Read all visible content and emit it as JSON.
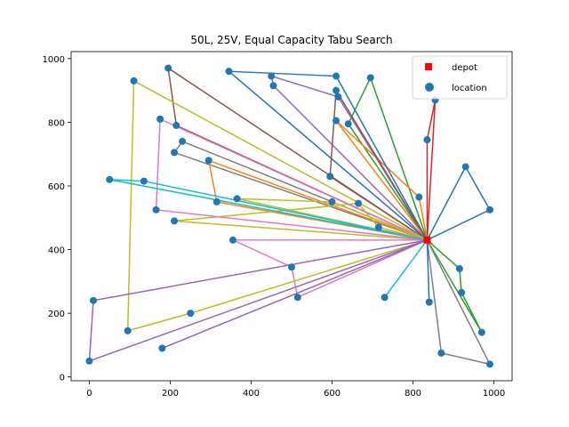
{
  "chart_data": {
    "type": "scatter",
    "title": "50L, 25V, Equal Capacity Tabu Search",
    "xlabel": "",
    "ylabel": "",
    "xlim": [
      -45,
      1045
    ],
    "ylim": [
      -12,
      1022
    ],
    "xticks": [
      0,
      200,
      400,
      600,
      800,
      1000
    ],
    "yticks": [
      0,
      200,
      400,
      600,
      800,
      1000
    ],
    "grid": false,
    "legend": {
      "placement": "top-right",
      "entries": [
        {
          "label": "depot",
          "marker": "square",
          "color": "#ff0000"
        },
        {
          "label": "location",
          "marker": "circle",
          "color": "#1f77b4"
        }
      ]
    },
    "depot": {
      "x": 835,
      "y": 430
    },
    "locations": [
      [
        855,
        870
      ],
      [
        835,
        745
      ],
      [
        815,
        565
      ],
      [
        930,
        660
      ],
      [
        990,
        525
      ],
      [
        915,
        340
      ],
      [
        920,
        265
      ],
      [
        970,
        140
      ],
      [
        990,
        40
      ],
      [
        870,
        75
      ],
      [
        840,
        235
      ],
      [
        730,
        250
      ],
      [
        715,
        470
      ],
      [
        695,
        940
      ],
      [
        640,
        795
      ],
      [
        665,
        545
      ],
      [
        610,
        805
      ],
      [
        615,
        880
      ],
      [
        610,
        945
      ],
      [
        610,
        900
      ],
      [
        595,
        630
      ],
      [
        600,
        550
      ],
      [
        450,
        945
      ],
      [
        455,
        915
      ],
      [
        345,
        960
      ],
      [
        195,
        970
      ],
      [
        215,
        790
      ],
      [
        230,
        740
      ],
      [
        210,
        705
      ],
      [
        295,
        680
      ],
      [
        315,
        550
      ],
      [
        365,
        560
      ],
      [
        210,
        490
      ],
      [
        175,
        810
      ],
      [
        165,
        525
      ],
      [
        355,
        430
      ],
      [
        500,
        345
      ],
      [
        515,
        250
      ],
      [
        250,
        200
      ],
      [
        180,
        90
      ],
      [
        95,
        145
      ],
      [
        110,
        930
      ],
      [
        135,
        615
      ],
      [
        50,
        620
      ],
      [
        10,
        240
      ],
      [
        0,
        50
      ]
    ],
    "routes": [
      {
        "color": "#d62728",
        "points": [
          [
            835,
            430
          ],
          [
            855,
            870
          ],
          [
            835,
            745
          ],
          [
            835,
            430
          ]
        ]
      },
      {
        "color": "#1f77b4",
        "points": [
          [
            835,
            430
          ],
          [
            930,
            660
          ],
          [
            990,
            525
          ],
          [
            835,
            430
          ]
        ]
      },
      {
        "color": "#2ca02c",
        "points": [
          [
            835,
            430
          ],
          [
            915,
            340
          ],
          [
            920,
            265
          ],
          [
            970,
            140
          ],
          [
            835,
            430
          ]
        ]
      },
      {
        "color": "#7f7f7f",
        "points": [
          [
            835,
            430
          ],
          [
            990,
            40
          ],
          [
            870,
            75
          ],
          [
            835,
            430
          ]
        ]
      },
      {
        "color": "#1f77b4",
        "points": [
          [
            835,
            430
          ],
          [
            840,
            235
          ],
          [
            835,
            430
          ]
        ]
      },
      {
        "color": "#17becf",
        "points": [
          [
            835,
            430
          ],
          [
            730,
            250
          ],
          [
            835,
            430
          ]
        ]
      },
      {
        "color": "#2ca02c",
        "points": [
          [
            835,
            430
          ],
          [
            695,
            940
          ],
          [
            640,
            795
          ],
          [
            835,
            430
          ]
        ]
      },
      {
        "color": "#ff7f0e",
        "points": [
          [
            835,
            430
          ],
          [
            815,
            565
          ],
          [
            610,
            805
          ],
          [
            835,
            430
          ]
        ]
      },
      {
        "color": "#9467bd",
        "points": [
          [
            835,
            430
          ],
          [
            615,
            880
          ],
          [
            450,
            945
          ],
          [
            455,
            915
          ],
          [
            835,
            430
          ]
        ]
      },
      {
        "color": "#1f77b4",
        "points": [
          [
            835,
            430
          ],
          [
            610,
            945
          ],
          [
            345,
            960
          ],
          [
            835,
            430
          ]
        ]
      },
      {
        "color": "#8c564b",
        "points": [
          [
            835,
            430
          ],
          [
            595,
            630
          ],
          [
            610,
            900
          ],
          [
            835,
            430
          ]
        ]
      },
      {
        "color": "#8c564b",
        "points": [
          [
            835,
            430
          ],
          [
            195,
            970
          ],
          [
            215,
            790
          ],
          [
            835,
            430
          ]
        ]
      },
      {
        "color": "#7f7f7f",
        "points": [
          [
            835,
            430
          ],
          [
            230,
            740
          ],
          [
            210,
            705
          ],
          [
            835,
            430
          ]
        ]
      },
      {
        "color": "#ff7f0e",
        "points": [
          [
            835,
            430
          ],
          [
            295,
            680
          ],
          [
            315,
            550
          ],
          [
            835,
            430
          ]
        ]
      },
      {
        "color": "#bcbd22",
        "points": [
          [
            835,
            430
          ],
          [
            365,
            560
          ],
          [
            600,
            550
          ],
          [
            835,
            430
          ]
        ]
      },
      {
        "color": "#bcbd22",
        "points": [
          [
            835,
            430
          ],
          [
            210,
            490
          ],
          [
            665,
            545
          ],
          [
            715,
            470
          ],
          [
            835,
            430
          ]
        ]
      },
      {
        "color": "#e377c2",
        "points": [
          [
            835,
            430
          ],
          [
            175,
            810
          ],
          [
            165,
            525
          ],
          [
            835,
            430
          ]
        ]
      },
      {
        "color": "#e377c2",
        "points": [
          [
            835,
            430
          ],
          [
            355,
            430
          ],
          [
            500,
            345
          ],
          [
            515,
            250
          ],
          [
            835,
            430
          ]
        ]
      },
      {
        "color": "#9467bd",
        "points": [
          [
            835,
            430
          ],
          [
            180,
            90
          ],
          [
            835,
            430
          ]
        ]
      },
      {
        "color": "#bcbd22",
        "points": [
          [
            835,
            430
          ],
          [
            250,
            200
          ],
          [
            95,
            145
          ],
          [
            110,
            930
          ],
          [
            835,
            430
          ]
        ]
      },
      {
        "color": "#17becf",
        "points": [
          [
            835,
            430
          ],
          [
            135,
            615
          ],
          [
            50,
            620
          ],
          [
            835,
            430
          ]
        ]
      },
      {
        "color": "#9467bd",
        "points": [
          [
            835,
            430
          ],
          [
            10,
            240
          ],
          [
            0,
            50
          ],
          [
            835,
            430
          ]
        ]
      }
    ]
  }
}
